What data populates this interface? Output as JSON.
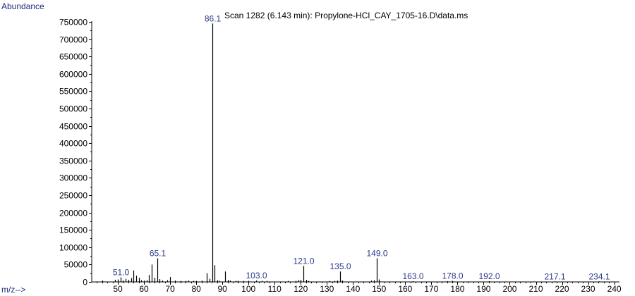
{
  "chart_data": {
    "type": "bar",
    "title": "Scan 1282 (6.143 min): Propylone-HCl_CAY_1705-16.D\\data.ms",
    "ylabel": "Abundance",
    "xlabel": "m/z-->",
    "xlim": [
      40,
      242
    ],
    "ylim": [
      0,
      760000
    ],
    "x_ticks": [
      50,
      60,
      70,
      80,
      90,
      100,
      110,
      120,
      130,
      140,
      150,
      160,
      170,
      180,
      190,
      200,
      210,
      220,
      230,
      240
    ],
    "y_ticks": [
      0,
      50000,
      100000,
      150000,
      200000,
      250000,
      300000,
      350000,
      400000,
      450000,
      500000,
      550000,
      600000,
      650000,
      700000,
      750000
    ],
    "colors": {
      "bars": "#000000",
      "peak_labels": "#2a3a8c",
      "axis_titles": "#1c2b80",
      "axes": "#000000"
    },
    "peaks": [
      {
        "mz": 44.0,
        "value": 4000
      },
      {
        "mz": 49.0,
        "value": 6000
      },
      {
        "mz": 50.0,
        "value": 7000
      },
      {
        "mz": 51.0,
        "value": 13000,
        "label": "51.0"
      },
      {
        "mz": 52.0,
        "value": 4000
      },
      {
        "mz": 53.0,
        "value": 9000
      },
      {
        "mz": 54.0,
        "value": 6000
      },
      {
        "mz": 55.0,
        "value": 11000
      },
      {
        "mz": 56.0,
        "value": 33000
      },
      {
        "mz": 57.0,
        "value": 18000
      },
      {
        "mz": 58.0,
        "value": 12000
      },
      {
        "mz": 59.0,
        "value": 5000
      },
      {
        "mz": 60.0,
        "value": 4000
      },
      {
        "mz": 61.0,
        "value": 5000
      },
      {
        "mz": 62.0,
        "value": 20000
      },
      {
        "mz": 63.0,
        "value": 50000
      },
      {
        "mz": 64.0,
        "value": 12000
      },
      {
        "mz": 65.1,
        "value": 68000,
        "label": "65.1"
      },
      {
        "mz": 66.0,
        "value": 8000
      },
      {
        "mz": 67.0,
        "value": 4000
      },
      {
        "mz": 69.0,
        "value": 5000
      },
      {
        "mz": 70.0,
        "value": 14000
      },
      {
        "mz": 72.0,
        "value": 4000
      },
      {
        "mz": 74.0,
        "value": 3000
      },
      {
        "mz": 76.0,
        "value": 3000
      },
      {
        "mz": 77.0,
        "value": 4000
      },
      {
        "mz": 79.0,
        "value": 3000
      },
      {
        "mz": 80.0,
        "value": 3000
      },
      {
        "mz": 82.0,
        "value": 4000
      },
      {
        "mz": 84.0,
        "value": 25000
      },
      {
        "mz": 85.0,
        "value": 9000
      },
      {
        "mz": 86.1,
        "value": 745000,
        "label": "86.1"
      },
      {
        "mz": 87.0,
        "value": 48000
      },
      {
        "mz": 88.0,
        "value": 5000
      },
      {
        "mz": 89.0,
        "value": 3000
      },
      {
        "mz": 91.0,
        "value": 30000
      },
      {
        "mz": 92.0,
        "value": 6000
      },
      {
        "mz": 93.0,
        "value": 4000
      },
      {
        "mz": 95.0,
        "value": 3000
      },
      {
        "mz": 96.0,
        "value": 3000
      },
      {
        "mz": 98.0,
        "value": 3000
      },
      {
        "mz": 100.0,
        "value": 3000
      },
      {
        "mz": 103.0,
        "value": 4000,
        "label": "103.0"
      },
      {
        "mz": 105.0,
        "value": 3000
      },
      {
        "mz": 107.0,
        "value": 3000
      },
      {
        "mz": 115.0,
        "value": 3000
      },
      {
        "mz": 118.0,
        "value": 3000
      },
      {
        "mz": 119.0,
        "value": 5000
      },
      {
        "mz": 120.0,
        "value": 6000
      },
      {
        "mz": 121.0,
        "value": 46000,
        "label": "121.0"
      },
      {
        "mz": 122.0,
        "value": 6000
      },
      {
        "mz": 123.0,
        "value": 3000
      },
      {
        "mz": 131.0,
        "value": 3000
      },
      {
        "mz": 133.0,
        "value": 3000
      },
      {
        "mz": 134.0,
        "value": 4000
      },
      {
        "mz": 135.0,
        "value": 30000,
        "label": "135.0"
      },
      {
        "mz": 136.0,
        "value": 4000
      },
      {
        "mz": 147.0,
        "value": 4000
      },
      {
        "mz": 148.0,
        "value": 5000
      },
      {
        "mz": 149.0,
        "value": 68000,
        "label": "149.0"
      },
      {
        "mz": 150.0,
        "value": 7000
      },
      {
        "mz": 163.0,
        "value": 2000,
        "label": "163.0"
      },
      {
        "mz": 176.0,
        "value": 2000
      },
      {
        "mz": 178.0,
        "value": 3000,
        "label": "178.0"
      },
      {
        "mz": 192.0,
        "value": 2000,
        "label": "192.0"
      },
      {
        "mz": 217.1,
        "value": 1500,
        "label": "217.1"
      },
      {
        "mz": 234.1,
        "value": 1500,
        "label": "234.1"
      }
    ]
  }
}
